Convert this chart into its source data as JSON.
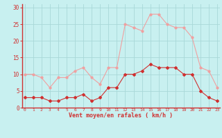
{
  "x": [
    0,
    1,
    2,
    3,
    4,
    5,
    6,
    7,
    8,
    9,
    10,
    11,
    12,
    13,
    14,
    15,
    16,
    17,
    18,
    19,
    20,
    21,
    22,
    23
  ],
  "wind_avg": [
    3,
    3,
    3,
    2,
    2,
    3,
    3,
    4,
    2,
    3,
    6,
    6,
    10,
    10,
    11,
    13,
    12,
    12,
    12,
    10,
    10,
    5,
    3,
    2
  ],
  "wind_gust": [
    10,
    10,
    9,
    6,
    9,
    9,
    11,
    12,
    9,
    7,
    12,
    12,
    25,
    24,
    23,
    28,
    28,
    25,
    24,
    24,
    21,
    12,
    11,
    6
  ],
  "avg_color": "#d03030",
  "gust_color": "#f0a0a0",
  "bg_color": "#c8f0f0",
  "grid_color": "#a8d8d8",
  "xlabel": "Vent moyen/en rafales ( km/h )",
  "ylabel_ticks": [
    0,
    5,
    10,
    15,
    20,
    25,
    30
  ],
  "xlim": [
    -0.3,
    23.3
  ],
  "ylim": [
    0,
    31
  ]
}
